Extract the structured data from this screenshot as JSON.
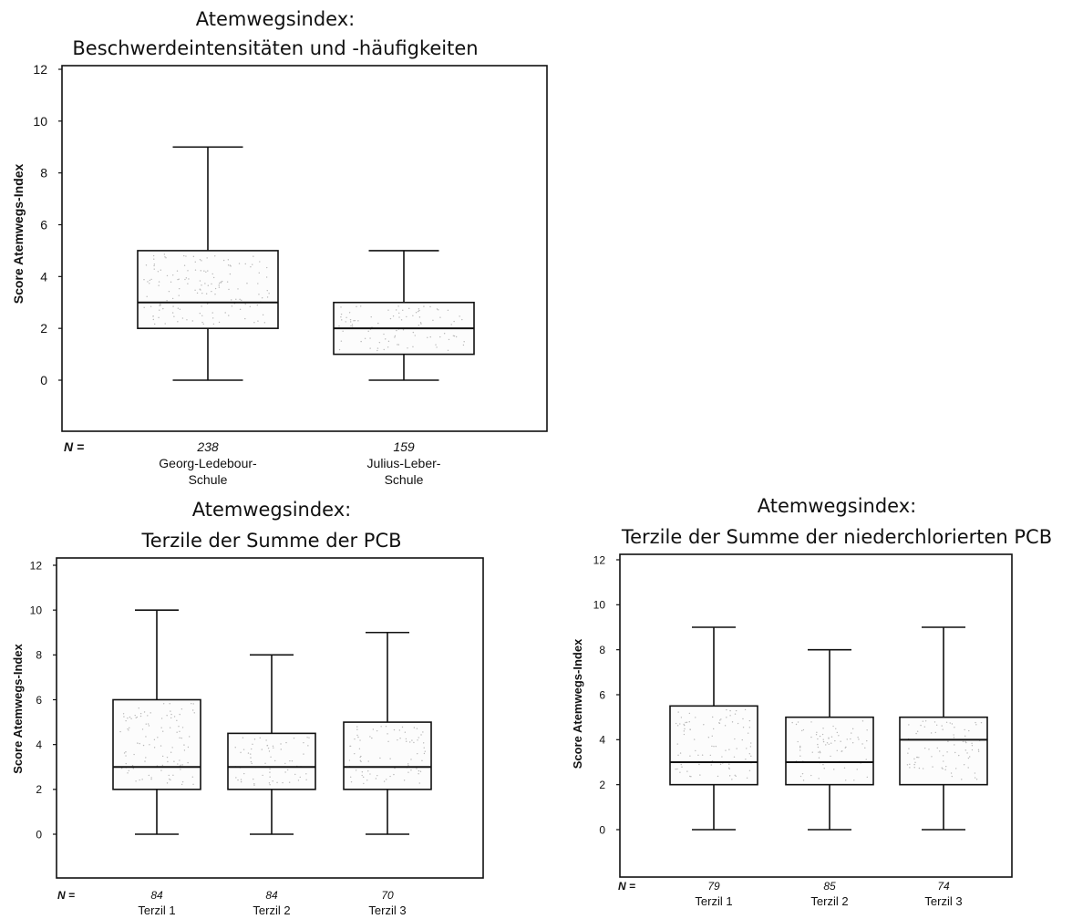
{
  "chart_data": [
    {
      "type": "boxplot",
      "title_lines": [
        "Atemwegsindex:",
        "Beschwerdeintensitäten und -häufigkeiten"
      ],
      "ylabel": "Score Atemwegs-Index",
      "ylim": [
        -2,
        12
      ],
      "yticks": [
        "0",
        "2",
        "4",
        "6",
        "8",
        "10",
        "12"
      ],
      "n_label": "N =",
      "groups": [
        {
          "n": "238",
          "label_lines": [
            "Georg-Ledebour-",
            "Schule"
          ],
          "min": 0,
          "q1": 2,
          "median": 3,
          "q3": 5,
          "max": 9
        },
        {
          "n": "159",
          "label_lines": [
            "Julius-Leber-",
            "Schule"
          ],
          "min": 0,
          "q1": 1,
          "median": 2,
          "q3": 3,
          "max": 5
        }
      ]
    },
    {
      "type": "boxplot",
      "title_lines": [
        "Atemwegsindex:",
        "Terzile der Summe der PCB"
      ],
      "ylabel": "Score Atemwegs-Index",
      "ylim": [
        -2,
        12
      ],
      "yticks": [
        "0",
        "2",
        "4",
        "6",
        "8",
        "10",
        "12"
      ],
      "n_label": "N =",
      "groups": [
        {
          "n": "84",
          "label_lines": [
            "Terzil 1"
          ],
          "min": 0,
          "q1": 2,
          "median": 3,
          "q3": 6,
          "max": 10
        },
        {
          "n": "84",
          "label_lines": [
            "Terzil 2"
          ],
          "min": 0,
          "q1": 2,
          "median": 3,
          "q3": 4.5,
          "max": 8
        },
        {
          "n": "70",
          "label_lines": [
            "Terzil 3"
          ],
          "min": 0,
          "q1": 2,
          "median": 3,
          "q3": 5,
          "max": 9
        }
      ]
    },
    {
      "type": "boxplot",
      "title_lines": [
        "Atemwegsindex:",
        "Terzile der Summe der niederchlorierten PCB"
      ],
      "ylabel": "Score Atemwegs-Index",
      "ylim": [
        -2,
        12
      ],
      "yticks": [
        "0",
        "2",
        "4",
        "6",
        "8",
        "10",
        "12"
      ],
      "n_label": "N =",
      "groups": [
        {
          "n": "79",
          "label_lines": [
            "Terzil 1"
          ],
          "min": 0,
          "q1": 2,
          "median": 3,
          "q3": 5.5,
          "max": 9
        },
        {
          "n": "85",
          "label_lines": [
            "Terzil 2"
          ],
          "min": 0,
          "q1": 2,
          "median": 3,
          "q3": 5,
          "max": 8
        },
        {
          "n": "74",
          "label_lines": [
            "Terzil 3"
          ],
          "min": 0,
          "q1": 2,
          "median": 4,
          "q3": 5,
          "max": 9
        }
      ]
    }
  ]
}
